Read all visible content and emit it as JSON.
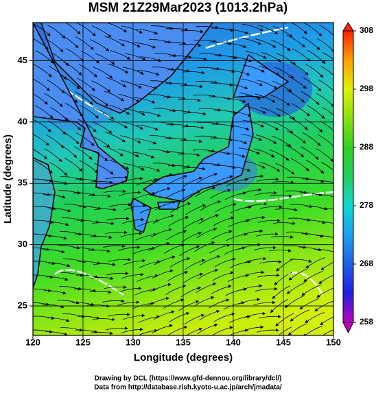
{
  "title": "MSM 21Z29Mar2023 (1013.2hPa)",
  "x_axis": {
    "label": "Longitude (degrees)",
    "lim": [
      120,
      150
    ],
    "ticks": [
      120,
      125,
      130,
      135,
      140,
      145,
      150
    ]
  },
  "y_axis": {
    "label": "Latitude  (degrees)",
    "lim": [
      22.6,
      48.1
    ],
    "ticks": [
      25,
      30,
      35,
      40,
      45
    ]
  },
  "colorbar": {
    "lim": [
      258,
      308
    ],
    "ticks": [
      258,
      268,
      278,
      288,
      298,
      308
    ]
  },
  "credits": [
    "Drawing by DCL (https://www.gfd-dennou.org/library/dcl/)",
    "Data from http://database.rish.kyoto-u.ac.jp/arch/jmadata/"
  ]
}
